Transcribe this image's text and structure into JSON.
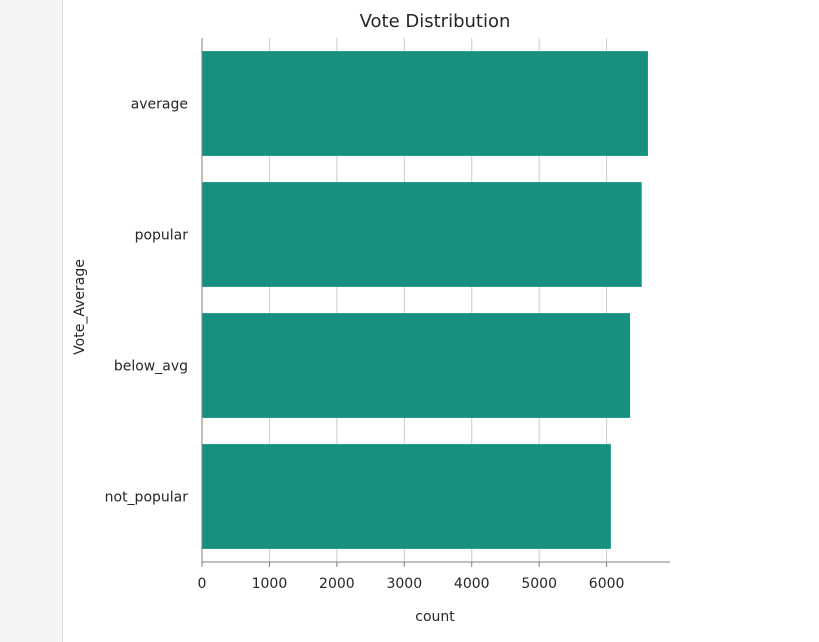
{
  "chart_data": {
    "type": "bar",
    "orientation": "horizontal",
    "title": "Vote Distribution",
    "xlabel": "count",
    "ylabel": "Vote_Average",
    "categories": [
      "average",
      "popular",
      "below_avg",
      "not_popular"
    ],
    "values": [
      6613,
      6520,
      6348,
      6063
    ],
    "xlim": [
      0,
      6940
    ],
    "xticks": [
      0,
      1000,
      2000,
      3000,
      4000,
      5000,
      6000
    ],
    "grid": "vertical",
    "legend": "none",
    "bar_color": "#17917f",
    "grid_color": "#cccccc",
    "axis_color": "#7f7f7f"
  }
}
